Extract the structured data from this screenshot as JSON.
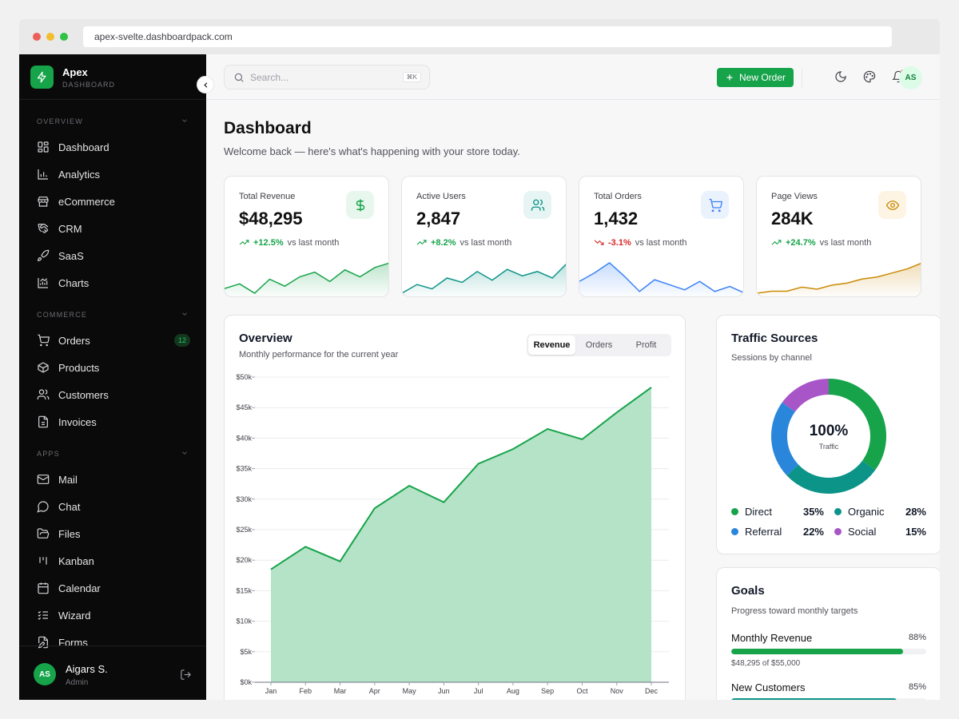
{
  "browser": {
    "url": "apex-svelte.dashboardpack.com"
  },
  "brand": {
    "name": "Apex",
    "sub": "DASHBOARD"
  },
  "sidebar": {
    "sections": [
      {
        "title": "OVERVIEW",
        "items": [
          {
            "label": "Dashboard",
            "icon": "grid-icon"
          },
          {
            "label": "Analytics",
            "icon": "bar-chart-icon"
          },
          {
            "label": "eCommerce",
            "icon": "store-icon"
          },
          {
            "label": "CRM",
            "icon": "handshake-icon"
          },
          {
            "label": "SaaS",
            "icon": "rocket-icon"
          },
          {
            "label": "Charts",
            "icon": "chart-icon"
          }
        ]
      },
      {
        "title": "COMMERCE",
        "items": [
          {
            "label": "Orders",
            "icon": "cart-icon",
            "badge": "12"
          },
          {
            "label": "Products",
            "icon": "box-icon"
          },
          {
            "label": "Customers",
            "icon": "users-icon"
          },
          {
            "label": "Invoices",
            "icon": "file-icon"
          }
        ]
      },
      {
        "title": "APPS",
        "items": [
          {
            "label": "Mail",
            "icon": "mail-icon"
          },
          {
            "label": "Chat",
            "icon": "chat-icon"
          },
          {
            "label": "Files",
            "icon": "folder-icon"
          },
          {
            "label": "Kanban",
            "icon": "kanban-icon"
          },
          {
            "label": "Calendar",
            "icon": "calendar-icon"
          },
          {
            "label": "Wizard",
            "icon": "list-check-icon"
          },
          {
            "label": "Forms",
            "icon": "form-icon"
          }
        ]
      }
    ],
    "user": {
      "initials": "AS",
      "name": "Aigars S.",
      "role": "Admin"
    }
  },
  "topbar": {
    "search_placeholder": "Search...",
    "search_shortcut": "⌘K",
    "new_order_label": "New Order",
    "avatar_initials": "AS"
  },
  "page": {
    "title": "Dashboard",
    "subtitle": "Welcome back — here's what's happening with your store today."
  },
  "stats": [
    {
      "label": "Total Revenue",
      "value": "$48,295",
      "delta": "+12.5%",
      "vs": "vs last month",
      "trend": "up",
      "icon": "dollar-icon",
      "color": "#16a34a",
      "bg": "#e8f7ee",
      "spark": [
        3,
        5,
        1,
        7,
        4,
        8,
        10,
        6,
        11,
        8,
        12,
        14
      ]
    },
    {
      "label": "Active Users",
      "value": "2,847",
      "delta": "+8.2%",
      "vs": "vs last month",
      "trend": "up",
      "icon": "users-icon",
      "color": "#0d9488",
      "bg": "#e6f5f3",
      "spark": [
        2,
        6,
        4,
        9,
        7,
        12,
        8,
        13,
        10,
        12,
        9,
        16
      ]
    },
    {
      "label": "Total Orders",
      "value": "1,432",
      "delta": "-3.1%",
      "vs": "vs last month",
      "trend": "down",
      "icon": "cart-icon",
      "color": "#3b82f6",
      "bg": "#eaf2fd",
      "spark": [
        9,
        14,
        20,
        12,
        3,
        10,
        7,
        4,
        9,
        3,
        6,
        2
      ]
    },
    {
      "label": "Page Views",
      "value": "284K",
      "delta": "+24.7%",
      "vs": "vs last month",
      "trend": "up",
      "icon": "eye-icon",
      "color": "#ca8a04",
      "bg": "#fdf4e3",
      "spark": [
        1,
        2,
        2,
        4,
        3,
        5,
        6,
        8,
        9,
        11,
        13,
        16
      ]
    }
  ],
  "overview": {
    "title": "Overview",
    "subtitle": "Monthly performance for the current year",
    "tabs": [
      "Revenue",
      "Orders",
      "Profit"
    ],
    "active_tab": 0
  },
  "chart_data": {
    "type": "area",
    "categories": [
      "Jan",
      "Feb",
      "Mar",
      "Apr",
      "May",
      "Jun",
      "Jul",
      "Aug",
      "Sep",
      "Oct",
      "Nov",
      "Dec"
    ],
    "values": [
      18500,
      22200,
      19800,
      28500,
      32200,
      29500,
      35800,
      38200,
      41500,
      39800,
      44200,
      48300
    ],
    "ylim": [
      0,
      50000
    ],
    "yticks": [
      "$0k",
      "$5k",
      "$10k",
      "$15k",
      "$20k",
      "$25k",
      "$30k",
      "$35k",
      "$40k",
      "$45k",
      "$50k"
    ],
    "grid": true,
    "color": "#16a34a"
  },
  "traffic": {
    "title": "Traffic Sources",
    "subtitle": "Sessions by channel",
    "center_value": "100%",
    "center_label": "Traffic",
    "slices": [
      {
        "name": "Direct",
        "value": 35,
        "pct": "35%",
        "color": "#16a34a"
      },
      {
        "name": "Organic",
        "value": 28,
        "pct": "28%",
        "color": "#0d9488"
      },
      {
        "name": "Referral",
        "value": 22,
        "pct": "22%",
        "color": "#2a86db"
      },
      {
        "name": "Social",
        "value": 15,
        "pct": "15%",
        "color": "#a855c7"
      }
    ]
  },
  "goals": {
    "title": "Goals",
    "subtitle": "Progress toward monthly targets",
    "items": [
      {
        "name": "Monthly Revenue",
        "pct": "88%",
        "fraction": 0.88,
        "note": "$48,295 of $55,000"
      },
      {
        "name": "New Customers",
        "pct": "85%",
        "fraction": 0.85
      }
    ]
  }
}
